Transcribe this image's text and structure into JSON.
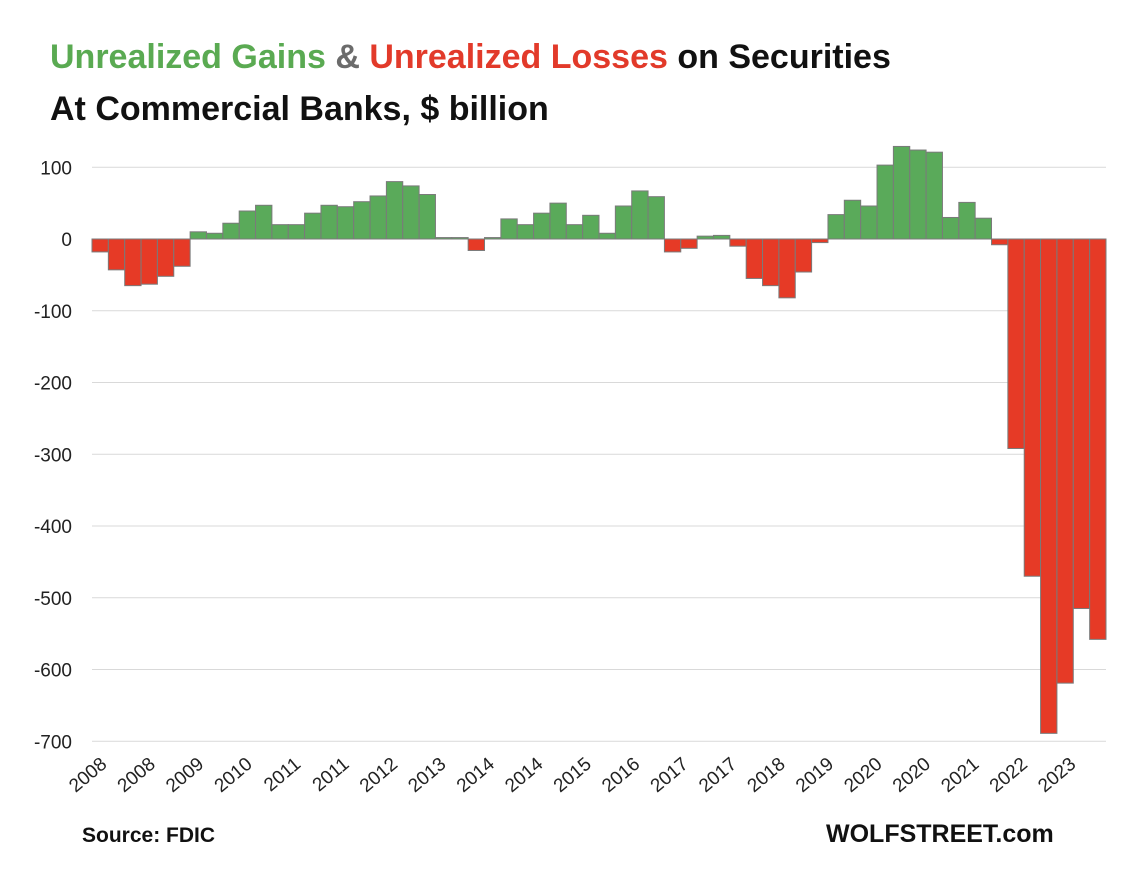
{
  "header": {
    "title_gains": "Unrealized Gains",
    "title_amp": "&",
    "title_losses": "Unrealized Losses",
    "title_rest": "on Securities",
    "subtitle": "At Commercial  Banks, $ billion"
  },
  "footer": {
    "source": "Source: FDIC",
    "brand": "WOLFSTREET.com"
  },
  "colors": {
    "gain": "#5aaa5a",
    "loss": "#e63a26",
    "bar_edge": "#7a7a7a",
    "grid": "#d9d9d9",
    "title_gain": "#5aaa52",
    "title_loss": "#e23a2a",
    "title_amp": "#6b6b6b",
    "title_dark": "#111111"
  },
  "chart_data": {
    "type": "bar",
    "title": "Unrealized Gains & Unrealized Losses on Securities At Commercial  Banks, $ billion",
    "ylabel": "$ billion",
    "ylim": [
      -710,
      130
    ],
    "yticks": [
      100,
      0,
      -100,
      -200,
      -300,
      -400,
      -500,
      -600,
      -700
    ],
    "grid": true,
    "x_tick_labels": [
      "2008",
      "2008",
      "2009",
      "2010",
      "2011",
      "2011",
      "2012",
      "2013",
      "2014",
      "2014",
      "2015",
      "2016",
      "2017",
      "2017",
      "2018",
      "2019",
      "2020",
      "2020",
      "2021",
      "2022",
      "2023"
    ],
    "values": [
      -18,
      -43,
      -65,
      -63,
      -52,
      -38,
      10,
      8,
      22,
      39,
      47,
      20,
      20,
      36,
      47,
      45,
      52,
      60,
      80,
      74,
      62,
      2,
      2,
      -16,
      2,
      28,
      20,
      36,
      50,
      20,
      33,
      8,
      46,
      67,
      59,
      -18,
      -13,
      4,
      5,
      -10,
      -55,
      -65,
      -82,
      -46,
      -5,
      34,
      54,
      46,
      103,
      129,
      124,
      121,
      30,
      51,
      29,
      -8,
      -292,
      -470,
      -689,
      -619,
      -515,
      -558
    ],
    "source": "Source: FDIC"
  }
}
